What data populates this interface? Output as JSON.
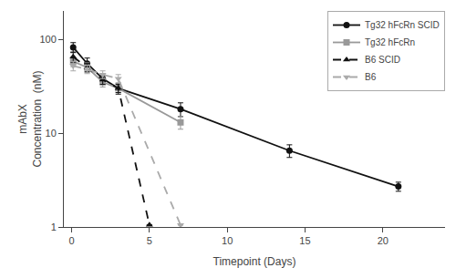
{
  "chart_data": {
    "type": "line",
    "xlabel": "Timepoint (Days)",
    "ylabel": "mAbX\nConcentration  (nM)",
    "xlim": [
      -0.5,
      24
    ],
    "ylim": [
      1,
      200
    ],
    "xticks": [
      0,
      5,
      10,
      15,
      20
    ],
    "yticks": [
      1,
      10,
      100
    ],
    "log": "y",
    "grid": false,
    "legend": "upper right",
    "series": [
      {
        "name": "Tg32 hFcRn SCID",
        "color": "#111111",
        "line_style": "solid",
        "marker": "circle",
        "x": [
          0.1,
          1,
          2,
          3,
          7,
          14,
          21
        ],
        "values": [
          82,
          55,
          38,
          30,
          18,
          6.5,
          2.7
        ],
        "yerr": [
          10,
          8,
          5,
          4,
          3,
          1.0,
          0.3
        ]
      },
      {
        "name": "Tg32 hFcRn",
        "color": "#999999",
        "line_style": "solid",
        "marker": "square",
        "x": [
          0.1,
          1,
          2,
          3,
          7
        ],
        "values": [
          58,
          50,
          35,
          30,
          13
        ],
        "yerr": [
          7,
          6,
          4,
          3,
          2
        ]
      },
      {
        "name": "B6 SCID",
        "color": "#111111",
        "line_style": "dash",
        "marker": "triangle-up",
        "x": [
          0.1,
          1,
          2,
          3,
          5
        ],
        "values": [
          65,
          50,
          37,
          30,
          1.05
        ],
        "yerr": [
          8,
          5,
          4,
          3,
          0.0
        ]
      },
      {
        "name": "B6",
        "color": "#aaaaaa",
        "line_style": "dash",
        "marker": "triangle-down",
        "x": [
          0.1,
          1,
          2,
          3,
          7
        ],
        "values": [
          52,
          48,
          42,
          38,
          1.05
        ],
        "yerr": [
          6,
          5,
          4,
          4,
          0.0
        ]
      }
    ]
  }
}
